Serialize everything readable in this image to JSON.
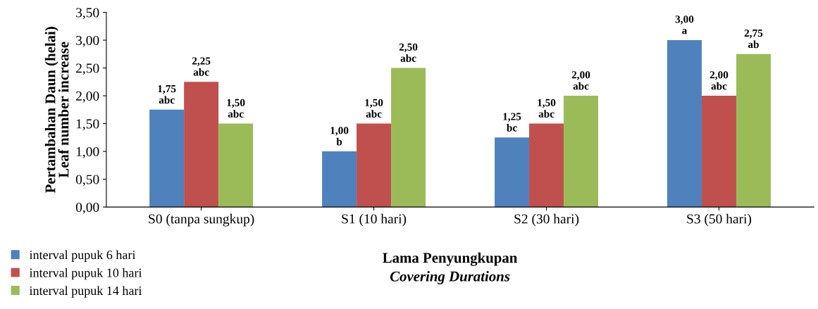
{
  "chart_data": {
    "type": "bar",
    "xlabel": "Lama Penyungkupan\nCovering Durations",
    "ylabel": "Pertambahan Daun (helai)\nLeaf number increase",
    "categories": [
      "S0 (tanpa sungkup)",
      "S1 (10 hari)",
      "S2 (30 hari)",
      "S3 (50 hari)"
    ],
    "series": [
      {
        "name": "interval pupuk 6 hari",
        "color": "#4f81bd",
        "values": [
          1.75,
          1.0,
          1.25,
          3.0
        ],
        "value_labels": [
          "1,75\nabc",
          "1,00\nb",
          "1,25\nbc",
          "3,00\na"
        ]
      },
      {
        "name": "interval pupuk 10 hari",
        "color": "#c0504d",
        "values": [
          2.25,
          1.5,
          1.5,
          2.0
        ],
        "value_labels": [
          "2,25\nabc",
          "1,50\nabc",
          "1,50\nabc",
          "2,00\nabc"
        ]
      },
      {
        "name": "interval pupuk 14 hari",
        "color": "#9bbb59",
        "values": [
          1.5,
          2.5,
          2.0,
          2.75
        ],
        "value_labels": [
          "1,50\nabc",
          "2,50\nabc",
          "2,00\nabc",
          "2,75\nab"
        ]
      }
    ],
    "ylim": [
      0,
      3.5
    ],
    "yticks": [
      {
        "value": 0,
        "label": "0,00"
      },
      {
        "value": 0.5,
        "label": "0,50"
      },
      {
        "value": 1,
        "label": "1,00"
      },
      {
        "value": 1.5,
        "label": "1,50"
      },
      {
        "value": 2,
        "label": "2,00"
      },
      {
        "value": 2.5,
        "label": "2,50"
      },
      {
        "value": 3,
        "label": "3,00"
      },
      {
        "value": 3.5,
        "label": "3,50"
      }
    ],
    "legend": "bottom left",
    "grid": false
  }
}
